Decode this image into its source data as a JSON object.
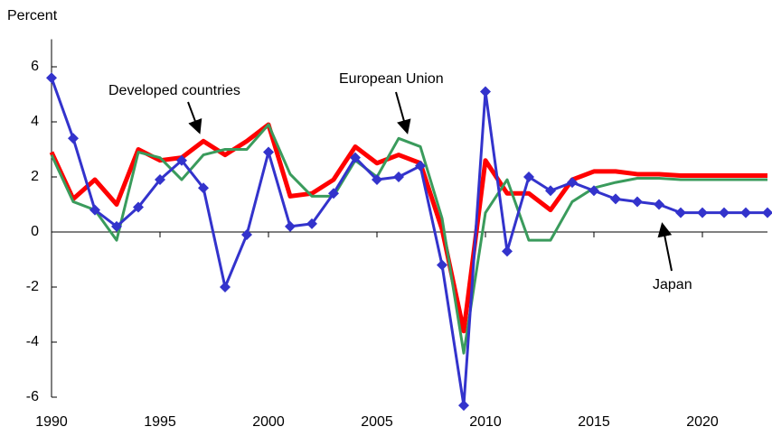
{
  "chart_data": {
    "type": "line",
    "y_label": "Percent",
    "x": [
      1990,
      1991,
      1992,
      1993,
      1994,
      1995,
      1996,
      1997,
      1998,
      1999,
      2000,
      2001,
      2002,
      2003,
      2004,
      2005,
      2006,
      2007,
      2008,
      2009,
      2010,
      2011,
      2012,
      2013,
      2014,
      2015,
      2016,
      2017,
      2018,
      2019,
      2020,
      2021,
      2022,
      2023
    ],
    "series": [
      {
        "name": "Developed countries",
        "color": "#ff0000",
        "markers": false,
        "values": [
          2.9,
          1.2,
          1.9,
          1.0,
          3.0,
          2.6,
          2.7,
          3.3,
          2.8,
          3.3,
          3.9,
          1.3,
          1.4,
          1.9,
          3.1,
          2.5,
          2.8,
          2.5,
          0.1,
          -3.6,
          2.6,
          1.4,
          1.4,
          0.8,
          1.9,
          2.2,
          2.2,
          2.1,
          2.1,
          2.05,
          2.05,
          2.05,
          2.05,
          2.05
        ]
      },
      {
        "name": "European Union",
        "color": "#3a9b5c",
        "markers": false,
        "values": [
          2.8,
          1.1,
          0.8,
          -0.3,
          2.9,
          2.7,
          1.9,
          2.8,
          3.0,
          3.0,
          3.9,
          2.1,
          1.3,
          1.3,
          2.6,
          2.0,
          3.4,
          3.1,
          0.5,
          -4.4,
          0.7,
          1.9,
          -0.3,
          -0.3,
          1.1,
          1.6,
          1.8,
          1.95,
          1.95,
          1.9,
          1.9,
          1.9,
          1.9,
          1.9
        ]
      },
      {
        "name": "Japan",
        "color": "#3333cc",
        "markers": true,
        "values": [
          5.6,
          3.4,
          0.8,
          0.2,
          0.9,
          1.9,
          2.6,
          1.6,
          -2.0,
          -0.1,
          2.9,
          0.2,
          0.3,
          1.4,
          2.7,
          1.9,
          2.0,
          2.4,
          -1.2,
          -6.3,
          5.1,
          -0.7,
          2.0,
          1.5,
          1.8,
          1.5,
          1.2,
          1.1,
          1.0,
          0.7,
          0.7,
          0.7,
          0.7,
          0.7
        ]
      }
    ],
    "xlim": [
      1990,
      2023
    ],
    "xticks": [
      1990,
      1995,
      2000,
      2005,
      2010,
      2015,
      2020
    ],
    "ylim": [
      -6,
      7
    ],
    "yticks": [
      -6,
      -4,
      -2,
      0,
      2,
      4,
      6
    ]
  }
}
